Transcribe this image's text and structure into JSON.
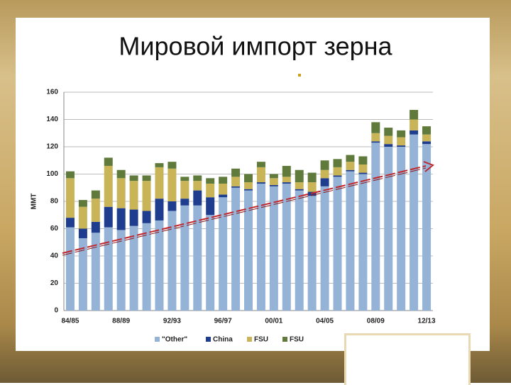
{
  "chart_data": {
    "type": "stacked-bar",
    "title": "Мировой импорт зерна",
    "y_label": "MMT",
    "categories": [
      "84/85",
      null,
      null,
      null,
      "88/89",
      null,
      null,
      null,
      "92/93",
      null,
      null,
      null,
      "96/97",
      null,
      null,
      null,
      "00/01",
      null,
      null,
      null,
      "04/05",
      null,
      null,
      null,
      "08/09",
      null,
      null,
      null,
      "12/13"
    ],
    "series": [
      {
        "name": "\"Other\"",
        "color": "#95b3d7",
        "values": [
          61,
          53,
          57,
          61,
          59,
          62,
          64,
          66,
          73,
          77,
          77,
          70,
          83,
          90,
          88,
          93,
          91,
          93,
          88,
          84,
          91,
          98,
          102,
          100,
          123,
          120,
          120,
          129,
          122
        ]
      },
      {
        "name": "China",
        "color": "#1f3d8f",
        "values": [
          7,
          7,
          8,
          15,
          16,
          12,
          9,
          16,
          7,
          5,
          11,
          13,
          2,
          1,
          1,
          1,
          1,
          1,
          1,
          3,
          6,
          1,
          1,
          1,
          1,
          2,
          1,
          3,
          2
        ]
      },
      {
        "name": "FSU",
        "color": "#c9b458",
        "values": [
          29,
          16,
          17,
          30,
          22,
          21,
          22,
          23,
          24,
          13,
          7,
          10,
          8,
          7,
          5,
          11,
          5,
          4,
          5,
          7,
          6,
          6,
          6,
          6,
          6,
          6,
          6,
          8,
          5
        ]
      },
      {
        "name": "FSU",
        "color": "#5f7a3a",
        "values": [
          5,
          5,
          6,
          6,
          6,
          4,
          4,
          3,
          5,
          3,
          4,
          4,
          5,
          6,
          6,
          4,
          3,
          8,
          9,
          7,
          7,
          6,
          5,
          6,
          8,
          6,
          5,
          7,
          6
        ]
      }
    ],
    "ylim": [
      0,
      160
    ],
    "yticks": [
      0,
      20,
      40,
      60,
      80,
      100,
      120,
      140,
      160
    ],
    "grid": true
  }
}
